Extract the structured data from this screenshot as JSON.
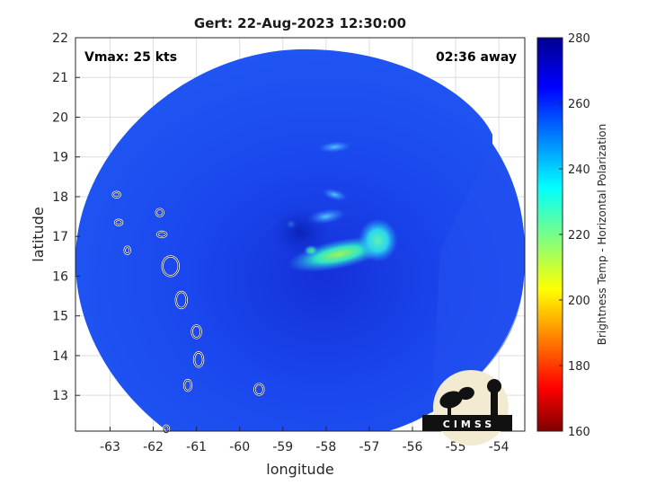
{
  "chart_data": {
    "type": "heatmap",
    "title": "Gert: 22-Aug-2023 12:30:00",
    "xlabel": "longitude",
    "ylabel": "latitude",
    "xlim": [
      -63.8,
      -53.4
    ],
    "ylim": [
      12.1,
      22
    ],
    "xticks": [
      "-63",
      "-62",
      "-61",
      "-60",
      "-59",
      "-58",
      "-57",
      "-56",
      "-55",
      "-54"
    ],
    "yticks": [
      "13",
      "14",
      "15",
      "16",
      "17",
      "18",
      "19",
      "20",
      "21",
      "22"
    ],
    "grid": true,
    "annotations": {
      "left": "Vmax: 25 kts",
      "right": "02:36 away"
    },
    "colorbar": {
      "label": "Brightness Temp - Horizontal Polarization",
      "range": [
        160,
        280
      ],
      "ticks": [
        "280",
        "260",
        "240",
        "220",
        "200",
        "180",
        "160"
      ]
    },
    "swath_background_value": 262,
    "features": [
      {
        "lon": -57.7,
        "lat": 16.55,
        "value": 225,
        "label": "warm band south of center"
      },
      {
        "lon": -56.8,
        "lat": 16.9,
        "value": 232,
        "label": "warm cluster east"
      },
      {
        "lon": -58.35,
        "lat": 16.65,
        "value": 228,
        "label": "small warm cell"
      },
      {
        "lon": -58.0,
        "lat": 17.5,
        "value": 248,
        "label": "band north"
      },
      {
        "lon": -57.8,
        "lat": 18.05,
        "value": 245,
        "label": "northern spot"
      },
      {
        "lon": -57.8,
        "lat": 19.25,
        "value": 247,
        "label": "north streak"
      },
      {
        "lon": -58.8,
        "lat": 17.3,
        "value": 245,
        "label": "west spot"
      },
      {
        "lon": -58.6,
        "lat": 17.1,
        "value": 268,
        "label": "cold center"
      }
    ],
    "islands": [
      {
        "lon": -62.85,
        "lat": 18.05
      },
      {
        "lon": -62.8,
        "lat": 17.35
      },
      {
        "lon": -62.6,
        "lat": 16.65
      },
      {
        "lon": -61.85,
        "lat": 17.6
      },
      {
        "lon": -61.8,
        "lat": 17.05
      },
      {
        "lon": -61.6,
        "lat": 16.25
      },
      {
        "lon": -61.35,
        "lat": 15.4
      },
      {
        "lon": -61.0,
        "lat": 14.6
      },
      {
        "lon": -60.95,
        "lat": 13.9
      },
      {
        "lon": -61.2,
        "lat": 13.25
      },
      {
        "lon": -59.55,
        "lat": 13.15
      },
      {
        "lon": -61.7,
        "lat": 12.15
      }
    ]
  },
  "logo": {
    "text": "CIMSS"
  }
}
